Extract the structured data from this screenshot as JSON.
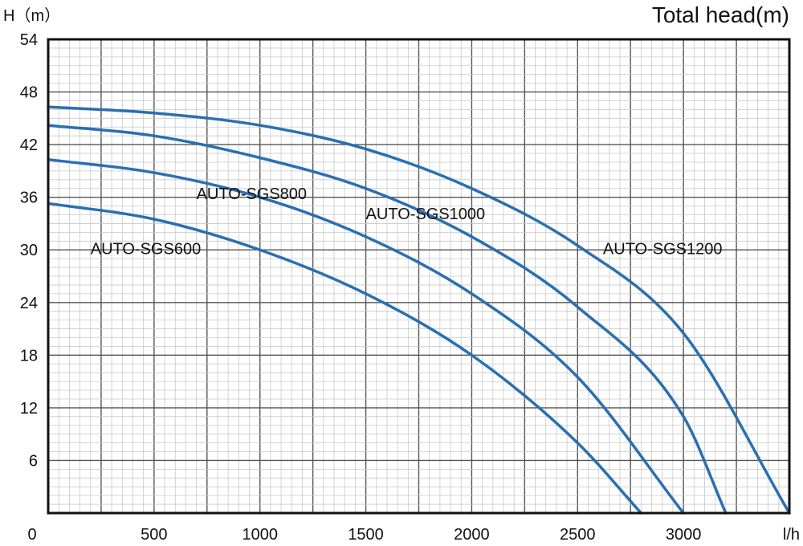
{
  "chart_data": {
    "type": "line",
    "title": "Total head(m)",
    "ylabel": "H（m）",
    "xunit": "l/h",
    "xlim": [
      0,
      3500
    ],
    "ylim": [
      0,
      54
    ],
    "x_ticks": [
      "0",
      "500",
      "1000",
      "1500",
      "2000",
      "2500",
      "3000"
    ],
    "y_ticks": [
      "6",
      "12",
      "18",
      "24",
      "30",
      "36",
      "42",
      "48",
      "54"
    ],
    "grid": true,
    "colors": {
      "curve": "#2a6fb0",
      "grid_major": "#555555",
      "grid_minor": "#c8c8c8"
    },
    "series": [
      {
        "name": "AUTO-SGS600",
        "x": [
          0,
          500,
          1000,
          1500,
          2000,
          2500,
          2800
        ],
        "y": [
          35.3,
          33.5,
          30.0,
          25.0,
          18.0,
          8.0,
          0
        ]
      },
      {
        "name": "AUTO-SGS800",
        "x": [
          0,
          500,
          1000,
          1500,
          2000,
          2500,
          3000
        ],
        "y": [
          40.3,
          38.8,
          36.0,
          31.5,
          25.0,
          15.5,
          0
        ]
      },
      {
        "name": "AUTO-SGS1000",
        "x": [
          0,
          500,
          1000,
          1500,
          2000,
          2500,
          3000,
          3200
        ],
        "y": [
          44.2,
          43.0,
          40.5,
          37.0,
          31.5,
          23.5,
          11.0,
          0
        ]
      },
      {
        "name": "AUTO-SGS1200",
        "x": [
          0,
          500,
          1000,
          1500,
          2000,
          2500,
          3000,
          3500
        ],
        "y": [
          46.3,
          45.6,
          44.2,
          41.5,
          37.0,
          30.5,
          20.5,
          0
        ]
      }
    ]
  }
}
